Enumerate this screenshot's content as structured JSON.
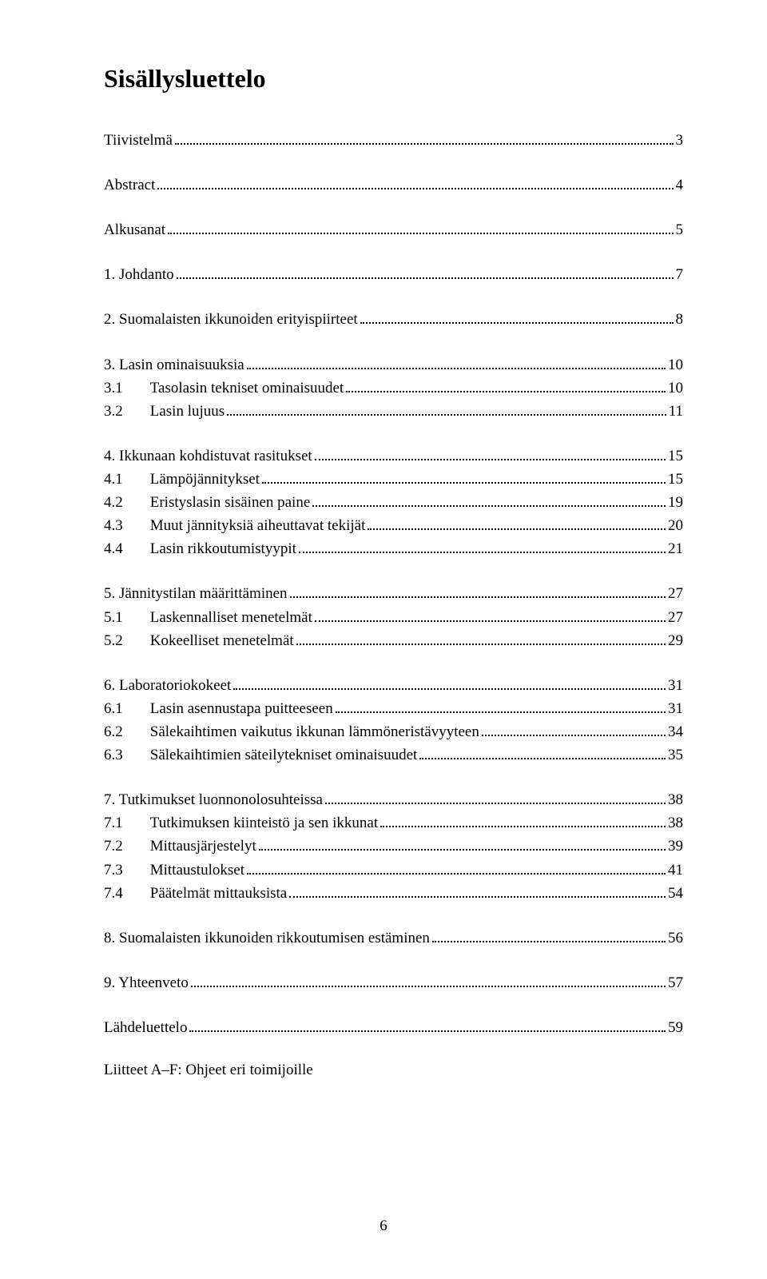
{
  "title": "Sisällysluettelo",
  "page_number": "6",
  "footer_text": "Liitteet A–F: Ohjeet eri toimijoille",
  "sections": [
    {
      "entries": [
        {
          "label": "Tiivistelmä",
          "page": "3",
          "level": 1
        }
      ]
    },
    {
      "entries": [
        {
          "label": "Abstract",
          "page": "4",
          "level": 1
        }
      ]
    },
    {
      "entries": [
        {
          "label": "Alkusanat",
          "page": "5",
          "level": 1
        }
      ]
    },
    {
      "entries": [
        {
          "label": "1. Johdanto",
          "page": "7",
          "level": 1
        }
      ]
    },
    {
      "entries": [
        {
          "label": "2. Suomalaisten ikkunoiden erityispiirteet",
          "page": "8",
          "level": 1
        }
      ]
    },
    {
      "entries": [
        {
          "label": "3. Lasin ominaisuuksia",
          "page": "10",
          "level": 1
        },
        {
          "label": "3.1",
          "subtitle": "Tasolasin tekniset ominaisuudet",
          "page": "10",
          "level": 2
        },
        {
          "label": "3.2",
          "subtitle": "Lasin lujuus",
          "page": "11",
          "level": 2
        }
      ]
    },
    {
      "entries": [
        {
          "label": "4. Ikkunaan kohdistuvat rasitukset",
          "page": "15",
          "level": 1
        },
        {
          "label": "4.1",
          "subtitle": "Lämpöjännitykset",
          "page": "15",
          "level": 2
        },
        {
          "label": "4.2",
          "subtitle": "Eristyslasin sisäinen paine",
          "page": "19",
          "level": 2
        },
        {
          "label": "4.3",
          "subtitle": "Muut jännityksiä aiheuttavat tekijät",
          "page": "20",
          "level": 2
        },
        {
          "label": "4.4",
          "subtitle": "Lasin rikkoutumistyypit",
          "page": "21",
          "level": 2
        }
      ]
    },
    {
      "entries": [
        {
          "label": "5. Jännitystilan määrittäminen",
          "page": "27",
          "level": 1
        },
        {
          "label": "5.1",
          "subtitle": "Laskennalliset menetelmät",
          "page": "27",
          "level": 2
        },
        {
          "label": "5.2",
          "subtitle": "Kokeelliset menetelmät",
          "page": "29",
          "level": 2
        }
      ]
    },
    {
      "entries": [
        {
          "label": "6. Laboratoriokokeet",
          "page": "31",
          "level": 1
        },
        {
          "label": "6.1",
          "subtitle": "Lasin asennustapa puitteeseen",
          "page": "31",
          "level": 2
        },
        {
          "label": "6.2",
          "subtitle": "Sälekaihtimen vaikutus ikkunan lämmöneristävyyteen",
          "page": "34",
          "level": 2
        },
        {
          "label": "6.3",
          "subtitle": "Sälekaihtimien säteilytekniset ominaisuudet",
          "page": "35",
          "level": 2
        }
      ]
    },
    {
      "entries": [
        {
          "label": "7. Tutkimukset luonnonolosuhteissa",
          "page": "38",
          "level": 1
        },
        {
          "label": "7.1",
          "subtitle": "Tutkimuksen kiinteistö ja sen ikkunat",
          "page": "38",
          "level": 2
        },
        {
          "label": "7.2",
          "subtitle": "Mittausjärjestelyt",
          "page": "39",
          "level": 2
        },
        {
          "label": "7.3",
          "subtitle": "Mittaustulokset",
          "page": "41",
          "level": 2
        },
        {
          "label": "7.4",
          "subtitle": "Päätelmät mittauksista",
          "page": "54",
          "level": 2
        }
      ]
    },
    {
      "entries": [
        {
          "label": "8. Suomalaisten ikkunoiden rikkoutumisen estäminen",
          "page": "56",
          "level": 1
        }
      ]
    },
    {
      "entries": [
        {
          "label": "9. Yhteenveto",
          "page": "57",
          "level": 1
        }
      ]
    },
    {
      "entries": [
        {
          "label": "Lähdeluettelo",
          "page": "59",
          "level": 1
        }
      ]
    }
  ]
}
